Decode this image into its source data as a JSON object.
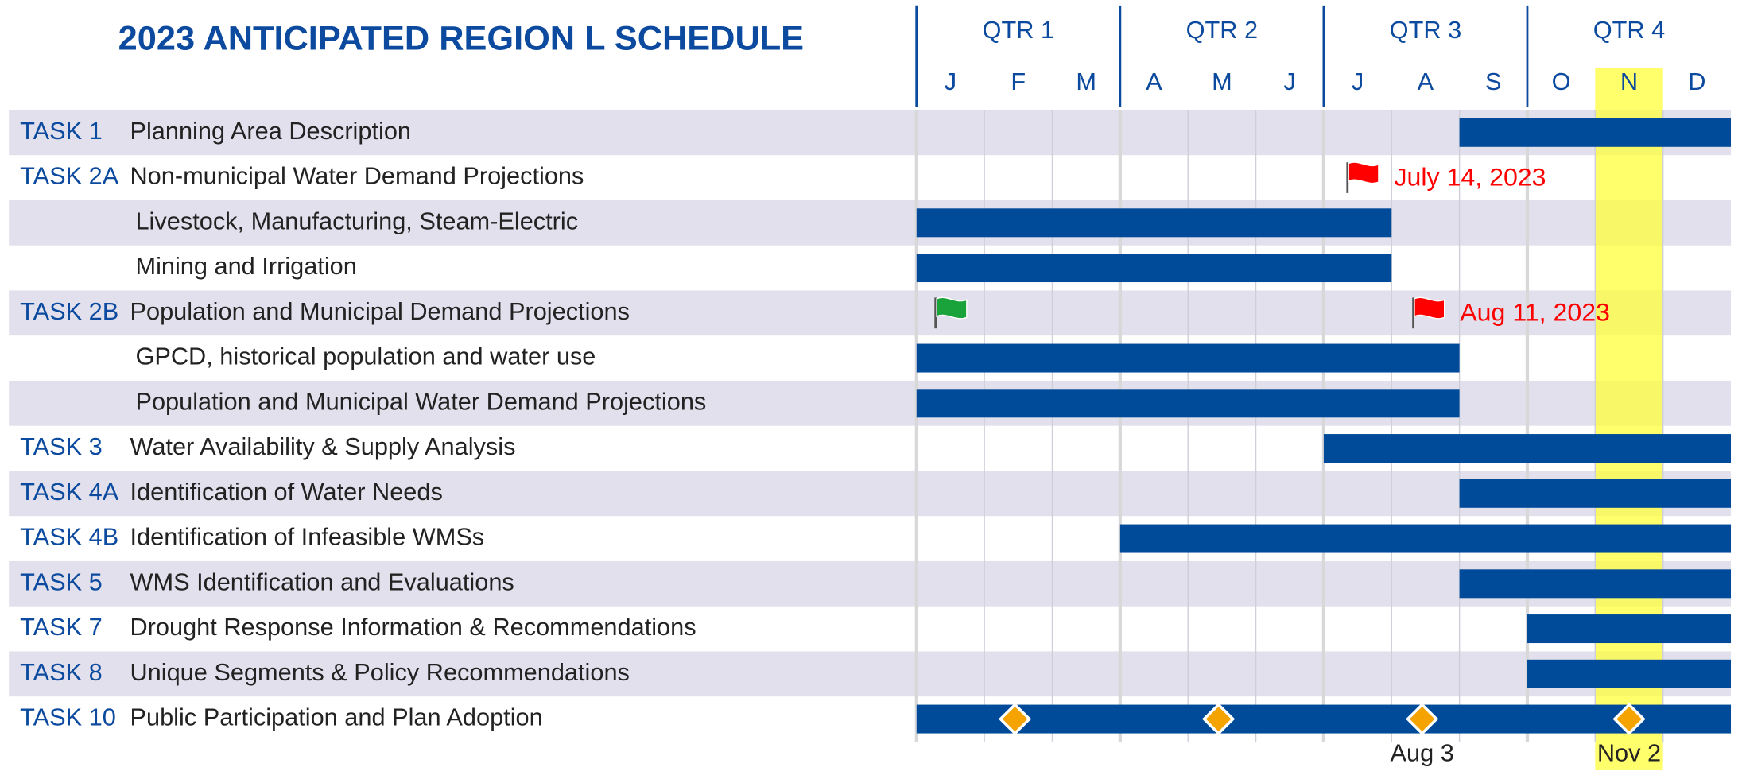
{
  "title": "2023 ANTICIPATED REGION L SCHEDULE",
  "quarters": [
    "QTR 1",
    "QTR 2",
    "QTR 3",
    "QTR 4"
  ],
  "months": [
    "J",
    "F",
    "M",
    "A",
    "M",
    "J",
    "J",
    "A",
    "S",
    "O",
    "N",
    "D"
  ],
  "timeline": {
    "start": 0,
    "end": 12
  },
  "highlight": {
    "start": 10,
    "end": 11
  },
  "rows": [
    {
      "task": "TASK 1",
      "name": "Planning Area Description",
      "bars": [
        {
          "start": 8,
          "end": 12
        }
      ]
    },
    {
      "task": "TASK 2A",
      "name": "Non-municipal Water Demand Projections",
      "flags": [
        {
          "at": 6.35,
          "color": "#ff0000",
          "label": "July 14, 2023"
        }
      ]
    },
    {
      "name": "Livestock, Manufacturing, Steam-Electric",
      "bars": [
        {
          "start": 0,
          "end": 7
        }
      ]
    },
    {
      "name": "Mining and Irrigation",
      "bars": [
        {
          "start": 0,
          "end": 7
        }
      ]
    },
    {
      "task": "TASK 2B",
      "name": "Population and Municipal Demand Projections",
      "flags": [
        {
          "at": 0.28,
          "color": "#1aa33a"
        },
        {
          "at": 7.32,
          "color": "#ff0000",
          "label": "Aug 11, 2023"
        }
      ]
    },
    {
      "name": "GPCD, historical population and water use",
      "bars": [
        {
          "start": 0,
          "end": 8
        }
      ]
    },
    {
      "name": "Population and Municipal Water Demand Projections",
      "bars": [
        {
          "start": 0,
          "end": 8
        }
      ]
    },
    {
      "task": "TASK 3",
      "name": "Water Availability & Supply Analysis",
      "bars": [
        {
          "start": 6,
          "end": 12
        }
      ]
    },
    {
      "task": "TASK 4A",
      "name": "Identification of Water Needs",
      "bars": [
        {
          "start": 8,
          "end": 12
        }
      ]
    },
    {
      "task": "TASK 4B",
      "name": "Identification of Infeasible WMSs",
      "bars": [
        {
          "start": 3,
          "end": 12
        }
      ]
    },
    {
      "task": "TASK 5",
      "name": "WMS Identification and Evaluations",
      "bars": [
        {
          "start": 8,
          "end": 12
        }
      ]
    },
    {
      "task": "TASK 7",
      "name": "Drought Response Information & Recommendations",
      "bars": [
        {
          "start": 9,
          "end": 12
        }
      ]
    },
    {
      "task": "TASK 8",
      "name": "Unique Segments & Policy Recommendations",
      "bars": [
        {
          "start": 9,
          "end": 12
        }
      ]
    },
    {
      "task": "TASK 10",
      "name": "Public Participation and Plan Adoption",
      "bars": [
        {
          "start": 0,
          "end": 12
        }
      ],
      "milestones": [
        {
          "at": 1.45
        },
        {
          "at": 4.45
        },
        {
          "at": 7.45,
          "label": "Aug 3"
        },
        {
          "at": 10.5,
          "label": "Nov 2"
        }
      ]
    }
  ]
}
